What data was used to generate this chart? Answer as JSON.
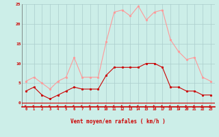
{
  "hours": [
    0,
    1,
    2,
    3,
    4,
    5,
    6,
    7,
    8,
    9,
    10,
    11,
    12,
    13,
    14,
    15,
    16,
    17,
    18,
    19,
    20,
    21,
    22,
    23
  ],
  "vent_moyen": [
    3.0,
    4.0,
    2.0,
    1.0,
    2.0,
    3.0,
    4.0,
    3.5,
    3.5,
    3.5,
    7.0,
    9.0,
    9.0,
    9.0,
    9.0,
    10.0,
    10.0,
    9.0,
    4.0,
    4.0,
    3.0,
    3.0,
    2.0,
    2.0
  ],
  "rafales": [
    5.5,
    6.5,
    5.0,
    3.5,
    5.5,
    6.5,
    11.5,
    6.5,
    6.5,
    6.5,
    15.5,
    23.0,
    23.5,
    22.0,
    24.5,
    21.0,
    23.0,
    23.5,
    16.0,
    13.0,
    11.0,
    11.5,
    6.5,
    5.5
  ],
  "color_moyen": "#cc0000",
  "color_rafales": "#ff9999",
  "bg_color": "#cceee8",
  "grid_color": "#aacccc",
  "xlabel": "Vent moyen/en rafales ( km/h )",
  "ylim": [
    -1,
    25
  ],
  "yticks": [
    0,
    5,
    10,
    15,
    20,
    25
  ],
  "spine_color": "#cc0000"
}
